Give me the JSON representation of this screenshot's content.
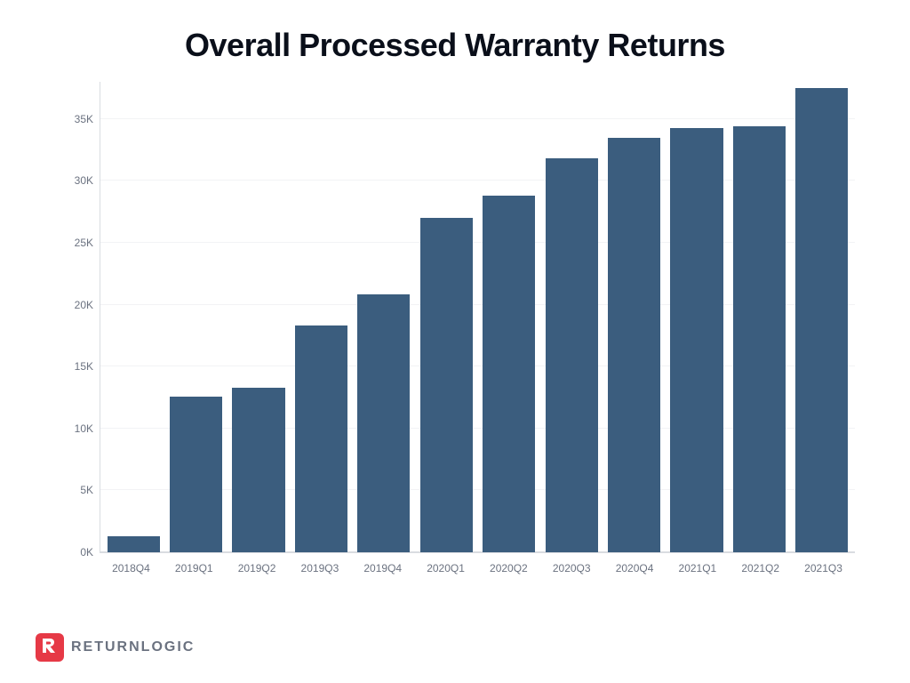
{
  "title": {
    "text": "Overall Processed Warranty Returns",
    "fontsize": 36,
    "fontweight": 800,
    "color": "#0a0f1a"
  },
  "chart": {
    "type": "bar",
    "categories": [
      "2018Q4",
      "2019Q1",
      "2019Q2",
      "2019Q3",
      "2019Q4",
      "2020Q1",
      "2020Q2",
      "2020Q3",
      "2020Q4",
      "2021Q1",
      "2021Q2",
      "2021Q3"
    ],
    "values": [
      1300,
      12600,
      13300,
      18300,
      20800,
      27000,
      28800,
      31800,
      33500,
      34300,
      34400,
      37500
    ],
    "bar_color": "#3b5d7e",
    "background_color": "#ffffff",
    "grid_color": "#f2f3f5",
    "axis_line_color": "#d9dce1",
    "ymin": 0,
    "ymax": 38000,
    "ytick_step": 5000,
    "yticks": [
      "0K",
      "5K",
      "10K",
      "15K",
      "20K",
      "25K",
      "30K",
      "35K"
    ],
    "bar_width_ratio": 0.84,
    "tick_label_color": "#6b7280",
    "tick_label_fontsize": 12
  },
  "logo": {
    "brand_text": "RETURNLOGIC",
    "mark_bg": "#e63946",
    "mark_fg": "#ffffff",
    "text_color": "#6b7280",
    "text_fontsize": 16
  }
}
